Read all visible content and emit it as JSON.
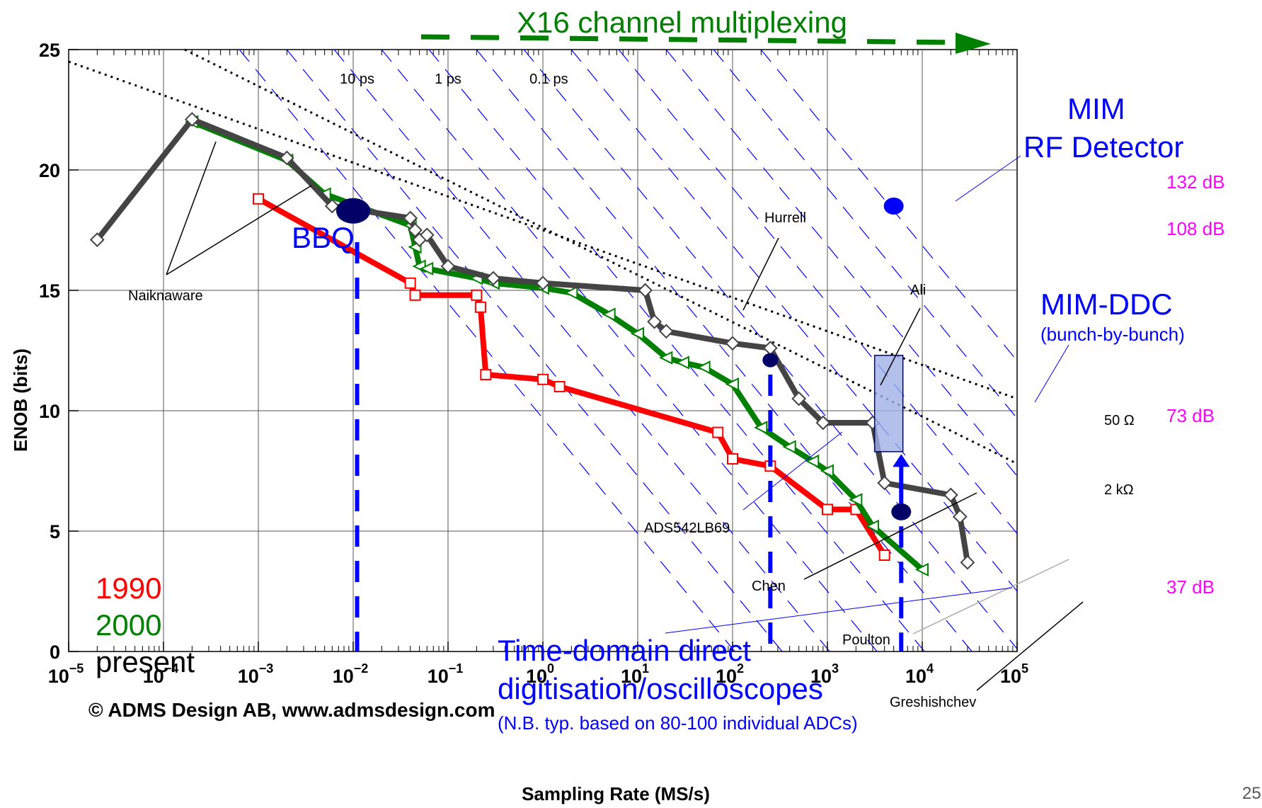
{
  "chart_data": {
    "type": "line",
    "title": "",
    "xlabel": "Sampling Rate (MS/s)",
    "ylabel": "ENOB (bits)",
    "x_scale": "log",
    "xlim": [
      1e-05,
      100000.0
    ],
    "ylim": [
      0,
      25
    ],
    "x_ticks": [
      {
        "base": "10",
        "exp": "−5",
        "v": 1e-05
      },
      {
        "base": "10",
        "exp": "−4",
        "v": 0.0001
      },
      {
        "base": "10",
        "exp": "−3",
        "v": 0.001
      },
      {
        "base": "10",
        "exp": "−2",
        "v": 0.01
      },
      {
        "base": "10",
        "exp": "−1",
        "v": 0.1
      },
      {
        "base": "10",
        "exp": "0",
        "v": 1
      },
      {
        "base": "10",
        "exp": "1",
        "v": 10
      },
      {
        "base": "10",
        "exp": "2",
        "v": 100
      },
      {
        "base": "10",
        "exp": "3",
        "v": 1000
      },
      {
        "base": "10",
        "exp": "4",
        "v": 10000
      },
      {
        "base": "10",
        "exp": "5",
        "v": 100000
      }
    ],
    "y_ticks": [
      {
        "label": "0",
        "v": 0
      },
      {
        "label": "5",
        "v": 5
      },
      {
        "label": "10",
        "v": 10
      },
      {
        "label": "15",
        "v": 15
      },
      {
        "label": "20",
        "v": 20
      },
      {
        "label": "25",
        "v": 25
      }
    ],
    "grid": true,
    "series": [
      {
        "name": "1990",
        "color": "#ff0000",
        "marker": "square",
        "x": [
          0.001,
          0.04,
          0.045,
          0.2,
          0.22,
          0.25,
          1.0,
          1.5,
          70,
          100,
          250,
          1000,
          2000,
          4000
        ],
        "y": [
          18.8,
          15.3,
          14.8,
          14.8,
          14.3,
          11.5,
          11.3,
          11.0,
          9.1,
          8.0,
          7.7,
          5.9,
          5.9,
          4.0
        ]
      },
      {
        "name": "2000",
        "color": "#008000",
        "marker": "triangle",
        "x": [
          0.0002,
          0.002,
          0.005,
          0.04,
          0.045,
          0.05,
          0.06,
          0.2,
          0.3,
          1.0,
          2.0,
          5,
          10,
          20,
          30,
          50,
          100,
          200,
          400,
          700,
          1000,
          2000,
          3000,
          10000
        ],
        "y": [
          22.0,
          20.4,
          19.0,
          17.7,
          16.8,
          16.0,
          15.9,
          15.5,
          15.3,
          15.1,
          14.9,
          14.0,
          13.2,
          12.2,
          12.0,
          11.8,
          11.1,
          9.3,
          8.5,
          7.9,
          7.5,
          6.3,
          5.2,
          3.4
        ]
      },
      {
        "name": "present",
        "color": "#444444",
        "marker": "diamond",
        "x": [
          2e-05,
          0.0002,
          0.002,
          0.006,
          0.04,
          0.045,
          0.05,
          0.06,
          0.1,
          0.3,
          1.0,
          12,
          15,
          20,
          100,
          250,
          500,
          900,
          3000,
          4000,
          20000,
          25000,
          30000
        ],
        "y": [
          17.1,
          22.1,
          20.5,
          18.5,
          18.0,
          17.5,
          17.1,
          17.3,
          16.0,
          15.5,
          15.3,
          15.0,
          13.7,
          13.3,
          12.8,
          12.6,
          10.5,
          9.5,
          9.5,
          7.0,
          6.5,
          5.6,
          3.7
        ]
      }
    ],
    "reference_lines": [
      {
        "label": "50 Ω",
        "x": [
          1e-05,
          100000.0
        ],
        "y": [
          24.5,
          10.5
        ]
      },
      {
        "label": "2 kΩ",
        "x": [
          1e-05,
          100000.0
        ],
        "y": [
          27.4,
          7.8
        ]
      }
    ],
    "jitter_lines": [
      {
        "label": "10 ps",
        "x": 0.0063
      },
      {
        "label": "1 ps",
        "x": 0.063
      },
      {
        "label": "0.1 ps",
        "x": 0.63
      }
    ],
    "highlight_points": [
      {
        "name": "BBQ",
        "x": 0.01,
        "y": 18.3
      },
      {
        "name": "ADS542LB69",
        "x": 250,
        "y": 12.1
      },
      {
        "name": "MIM RF Detector",
        "x": 5000,
        "y": 18.5
      },
      {
        "name": "Time-domain",
        "x": 6000,
        "y": 5.8
      }
    ],
    "mim_ddc_box": {
      "x": [
        4000,
        7000
      ],
      "y": [
        8.3,
        12.3
      ]
    },
    "vertical_markers": [
      {
        "x": 0.011,
        "y": [
          0,
          17
        ]
      },
      {
        "x": 250,
        "y": [
          0,
          11.5
        ]
      },
      {
        "x": 6000,
        "y": [
          0,
          5.2
        ]
      }
    ],
    "arrow_up": {
      "x": 6000,
      "y": [
        5.8,
        8.2
      ]
    },
    "annotation_labels": {
      "Naiknaware": {
        "x": 0.0001,
        "y": 16.1
      },
      "Hurrell": {
        "x": 25,
        "y": 19.2
      },
      "Ali": {
        "x": 400,
        "y": 16.3
      },
      "Chen": {
        "x": 50,
        "y": 5.7
      },
      "Poulton": {
        "x": 180,
        "y": 3.7
      },
      "Greshishchev": {
        "x": 1200,
        "y": 1.4
      },
      "ADS542LB69": {
        "x": 2,
        "y": 7.7
      }
    }
  },
  "labels": {
    "multiplex": "X16 channel multiplexing",
    "legend_1990": "1990",
    "legend_2000": "2000",
    "legend_present": "present",
    "copyright": "© ADMS Design AB, www.admsdesign.com",
    "bbq": "BBQ",
    "mim_rf_1": "MIM",
    "mim_rf_2": "RF Detector",
    "mim_ddc": "MIM-DDC",
    "mim_ddc_sub": "(bunch-by-bunch)",
    "time_domain_1": "Time-domain direct",
    "time_domain_2": "digitisation/oscilloscopes",
    "time_domain_3": "(N.B. typ. based on 80-100 individual ADCs)",
    "db_132": "132 dB",
    "db_108": "108 dB",
    "db_73": "73 dB",
    "db_37": "37 dB",
    "page_number": "25"
  },
  "colors": {
    "red": "#ff0000",
    "green": "#008000",
    "dark": "#444444",
    "blue": "#0000ff",
    "navy": "#000066",
    "magenta": "#ff00ff"
  }
}
